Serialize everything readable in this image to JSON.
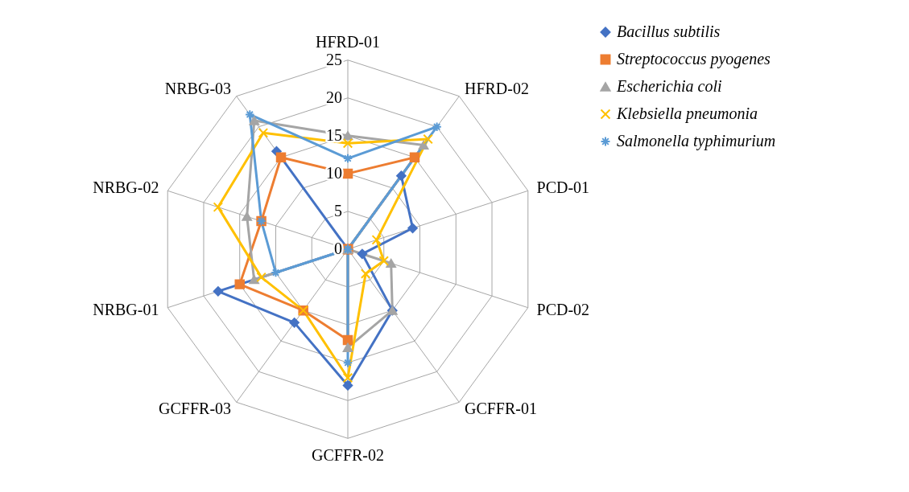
{
  "chart_data": {
    "type": "radar",
    "categories": [
      "HFRD-01",
      "HFRD-02",
      "PCD-01",
      "PCD-02",
      "GCFFR-01",
      "GCFFR-02",
      "GCFFR-03",
      "NRBG-01",
      "NRBG-02",
      "NRBG-03"
    ],
    "ylim": [
      0,
      25
    ],
    "yticks": [
      0,
      5,
      10,
      15,
      20,
      25
    ],
    "grid": true,
    "legend": "right",
    "series": [
      {
        "name": "Bacillus subtilis",
        "color": "#4472c4",
        "marker": "diamond",
        "values": [
          0,
          12,
          9,
          2,
          10,
          18,
          12,
          18,
          0,
          16
        ]
      },
      {
        "name": "Streptococcus pyogenes",
        "color": "#ed7d31",
        "marker": "square",
        "values": [
          10,
          15,
          0,
          0,
          0,
          12,
          10,
          15,
          12,
          15
        ]
      },
      {
        "name": "Escherichia coli",
        "color": "#a5a5a5",
        "marker": "triangle",
        "values": [
          15,
          17,
          0,
          6,
          10,
          13,
          0,
          13,
          14,
          21
        ]
      },
      {
        "name": "Klebsiella pneumonia",
        "color": "#ffc000",
        "marker": "cross",
        "values": [
          14,
          18,
          4,
          5,
          4,
          17,
          10,
          12,
          18,
          19
        ]
      },
      {
        "name": "Salmonella typhimurium",
        "color": "#5b9bd5",
        "marker": "star",
        "values": [
          12,
          20,
          0,
          0,
          0,
          15,
          0,
          10,
          12,
          22
        ]
      }
    ]
  }
}
